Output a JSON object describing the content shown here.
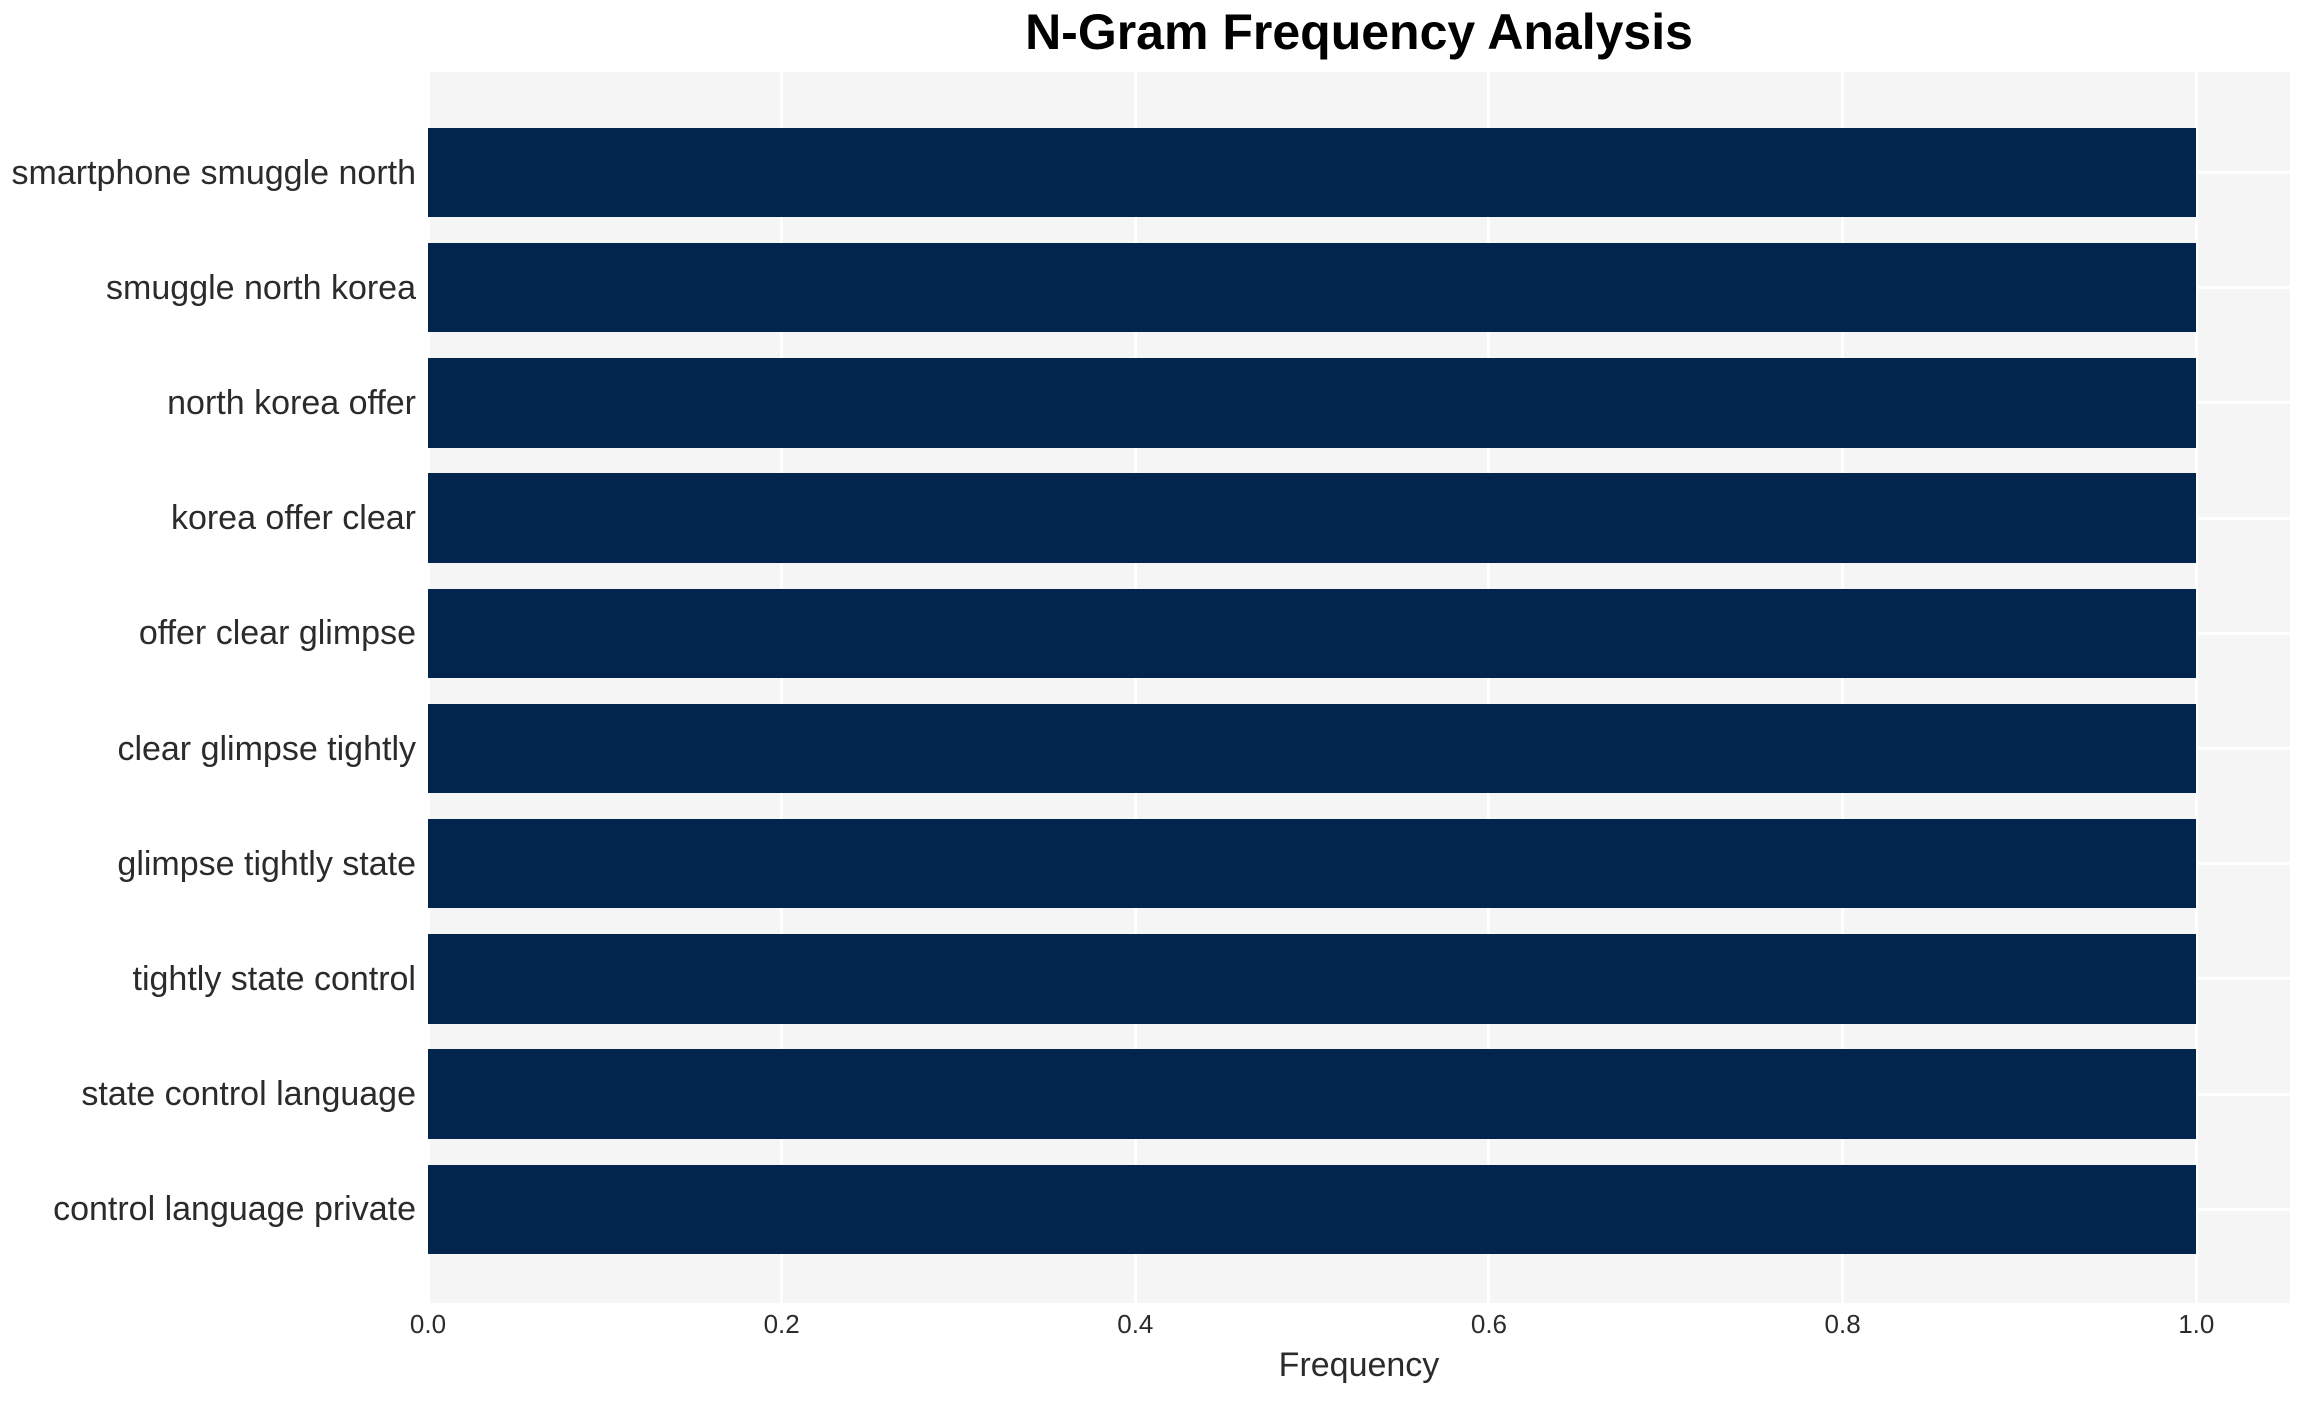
{
  "chart_data": {
    "type": "bar",
    "orientation": "horizontal",
    "title": "N-Gram Frequency Analysis",
    "xlabel": "Frequency",
    "ylabel": "",
    "categories": [
      "smartphone smuggle north",
      "smuggle north korea",
      "north korea offer",
      "korea offer clear",
      "offer clear glimpse",
      "clear glimpse tightly",
      "glimpse tightly state",
      "tightly state control",
      "state control language",
      "control language private"
    ],
    "values": [
      1.0,
      1.0,
      1.0,
      1.0,
      1.0,
      1.0,
      1.0,
      1.0,
      1.0,
      1.0
    ],
    "xlim": [
      0,
      1.053
    ],
    "xticks": {
      "values": [
        0.0,
        0.2,
        0.4,
        0.6,
        0.8,
        1.0
      ],
      "labels": [
        "0.0",
        "0.2",
        "0.4",
        "0.6",
        "0.8",
        "1.0"
      ]
    },
    "grid": true,
    "legend_visible": false,
    "colors": {
      "bar": "#02254e",
      "plot_background": "#f5f5f6",
      "figure_background": "#ffffff",
      "gridline": "#ffffff",
      "tick_text": "#2b2b2b",
      "title_text": "#000000"
    }
  }
}
